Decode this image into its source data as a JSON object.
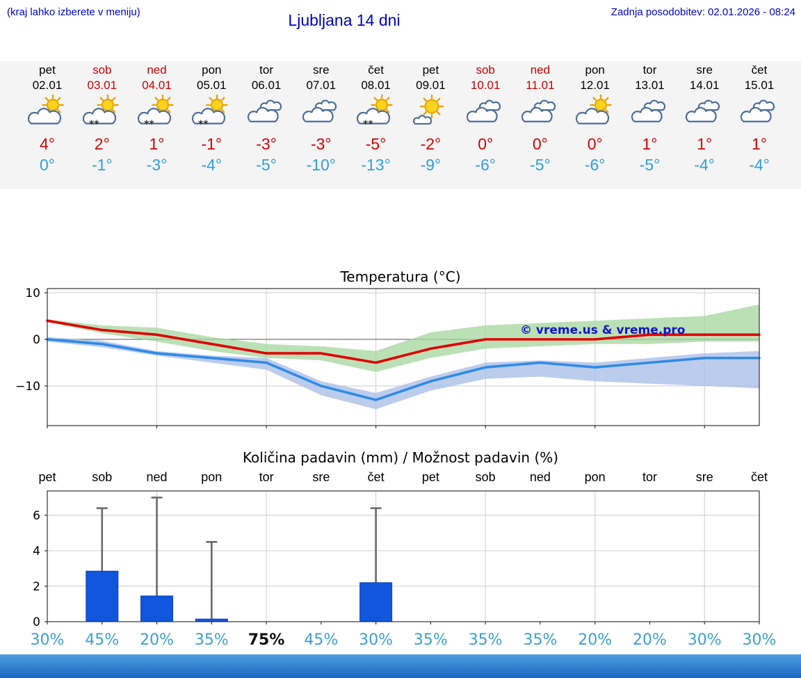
{
  "header": {
    "menu_hint": "(kraj lahko izberete v meniju)",
    "title": "Ljubljana 14 dni",
    "last_update": "Zadnja posodobitev: 02.01.2026 - 08:24"
  },
  "colors": {
    "accent_blue": "#0000cc",
    "weekend_red": "#cc0000",
    "temp_max_red": "#e00000",
    "temp_min_blue": "#2e8be8",
    "band_green": "#a5d69d",
    "band_blue": "#a6bbe6",
    "bar_blue": "#1156dd",
    "bar_edge": "#0b3fbf",
    "whisker_gray": "#6a6a6a",
    "percent_blue": "#3aa0d8",
    "grid_gray": "#cccccc",
    "strip_bg": "#f4f4f4"
  },
  "forecast": {
    "days": [
      {
        "day": "pet",
        "date": "02.01",
        "weekend": false,
        "icon": "partly-cloudy",
        "snow": false,
        "tmax": "4°",
        "tmin": "0°"
      },
      {
        "day": "sob",
        "date": "03.01",
        "weekend": true,
        "icon": "partly-cloudy",
        "snow": true,
        "tmax": "2°",
        "tmin": "-1°"
      },
      {
        "day": "ned",
        "date": "04.01",
        "weekend": true,
        "icon": "partly-cloudy",
        "snow": true,
        "tmax": "1°",
        "tmin": "-3°"
      },
      {
        "day": "pon",
        "date": "05.01",
        "weekend": false,
        "icon": "partly-cloudy",
        "snow": true,
        "tmax": "-1°",
        "tmin": "-4°"
      },
      {
        "day": "tor",
        "date": "06.01",
        "weekend": false,
        "icon": "cloudy",
        "snow": false,
        "tmax": "-3°",
        "tmin": "-5°"
      },
      {
        "day": "sre",
        "date": "07.01",
        "weekend": false,
        "icon": "cloudy",
        "snow": false,
        "tmax": "-3°",
        "tmin": "-10°"
      },
      {
        "day": "čet",
        "date": "08.01",
        "weekend": false,
        "icon": "partly-cloudy",
        "snow": true,
        "tmax": "-5°",
        "tmin": "-13°"
      },
      {
        "day": "pet",
        "date": "09.01",
        "weekend": false,
        "icon": "mostly-sunny",
        "snow": false,
        "tmax": "-2°",
        "tmin": "-9°"
      },
      {
        "day": "sob",
        "date": "10.01",
        "weekend": true,
        "icon": "cloudy",
        "snow": false,
        "tmax": "0°",
        "tmin": "-6°"
      },
      {
        "day": "ned",
        "date": "11.01",
        "weekend": true,
        "icon": "cloudy",
        "snow": false,
        "tmax": "0°",
        "tmin": "-5°"
      },
      {
        "day": "pon",
        "date": "12.01",
        "weekend": false,
        "icon": "partly-cloudy",
        "snow": false,
        "tmax": "0°",
        "tmin": "-6°"
      },
      {
        "day": "tor",
        "date": "13.01",
        "weekend": false,
        "icon": "cloudy",
        "snow": false,
        "tmax": "1°",
        "tmin": "-5°"
      },
      {
        "day": "sre",
        "date": "14.01",
        "weekend": false,
        "icon": "cloudy",
        "snow": false,
        "tmax": "1°",
        "tmin": "-4°"
      },
      {
        "day": "čet",
        "date": "15.01",
        "weekend": false,
        "icon": "cloudy",
        "snow": false,
        "tmax": "1°",
        "tmin": "-4°"
      }
    ]
  },
  "chart_data": [
    {
      "type": "line",
      "title": "Temperatura (°C)",
      "categories": [
        "02.01",
        "03.01",
        "04.01",
        "05.01",
        "06.01",
        "07.01",
        "08.01",
        "09.01",
        "10.01",
        "11.01",
        "12.01",
        "13.01",
        "14.01",
        "15.01"
      ],
      "ylim": [
        -18.5,
        10.9
      ],
      "yticks": [
        {
          "v": 10,
          "label": "10"
        },
        {
          "v": 0,
          "label": "0"
        },
        {
          "v": -10,
          "label": "−10"
        }
      ],
      "grid": true,
      "watermark": "© vreme.us & vreme.pro",
      "series": [
        {
          "name": "max temperature",
          "color": "#e00000",
          "values": [
            4,
            2,
            1,
            -1,
            -3,
            -3,
            -5,
            -2,
            0,
            0,
            0,
            1,
            1,
            1
          ]
        },
        {
          "name": "min temperature",
          "color": "#2e8be8",
          "values": [
            0,
            -1,
            -3,
            -4,
            -5,
            -10,
            -13,
            -9,
            -6,
            -5,
            -6,
            -5,
            -4,
            -4
          ]
        }
      ],
      "bands": [
        {
          "name": "max-range",
          "color": "#a5d69d",
          "upper": [
            4.3,
            3.0,
            2.5,
            0.5,
            -1.0,
            -1.5,
            -2.5,
            1.5,
            3.0,
            3.5,
            4.0,
            4.5,
            5.0,
            7.5
          ],
          "lower": [
            3.7,
            1.3,
            -0.5,
            -2.5,
            -4.0,
            -4.5,
            -7.0,
            -4.0,
            -2.0,
            -1.5,
            -1.0,
            -1.0,
            -0.5,
            -0.5
          ]
        },
        {
          "name": "min-range",
          "color": "#a6bbe6",
          "upper": [
            0.5,
            -0.3,
            -2.5,
            -3.5,
            -4.0,
            -9.0,
            -11.5,
            -8.0,
            -5.0,
            -4.5,
            -5.0,
            -4.0,
            -3.0,
            -2.5
          ],
          "lower": [
            -0.5,
            -1.7,
            -3.5,
            -5.0,
            -6.5,
            -12.0,
            -15.0,
            -11.0,
            -8.5,
            -8.0,
            -9.0,
            -9.5,
            -10.0,
            -10.5
          ]
        }
      ]
    },
    {
      "type": "bar",
      "title": "Količina padavin (mm) / Možnost padavin (%)",
      "categories": [
        "pet",
        "sob",
        "ned",
        "pon",
        "tor",
        "sre",
        "čet",
        "pet",
        "sob",
        "ned",
        "pon",
        "tor",
        "sre",
        "čet"
      ],
      "values": [
        0,
        2.85,
        1.45,
        0.15,
        0,
        0,
        2.2,
        0,
        0,
        0,
        0,
        0,
        0,
        0
      ],
      "whisker_max": [
        0,
        6.4,
        7.0,
        4.5,
        0,
        0,
        6.4,
        0,
        0,
        0,
        0,
        0,
        0,
        0
      ],
      "probabilities": [
        "30%",
        "45%",
        "20%",
        "35%",
        "75%",
        "45%",
        "30%",
        "35%",
        "35%",
        "35%",
        "20%",
        "20%",
        "30%",
        "30%"
      ],
      "emphasized_probability_index": 4,
      "ylim": [
        0,
        7.4
      ],
      "yticks": [
        {
          "v": 0,
          "label": "0"
        },
        {
          "v": 2,
          "label": "2"
        },
        {
          "v": 4,
          "label": "4"
        },
        {
          "v": 6,
          "label": "6"
        }
      ],
      "grid": true
    }
  ]
}
